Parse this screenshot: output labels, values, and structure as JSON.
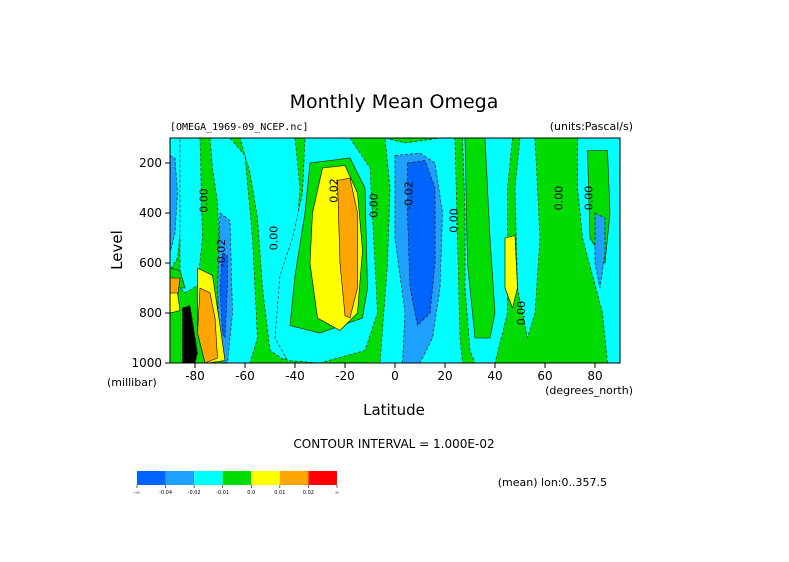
{
  "chart_data": {
    "type": "heatmap",
    "title": "Monthly Mean Omega",
    "dataset_label": "[OMEGA_1969-09_NCEP.nc]",
    "units_label": "(units:Pascal/s)",
    "xlabel": "Latitude",
    "ylabel": "Level",
    "x_unit_label": "(degrees_north)",
    "y_unit_label": "(millibar)",
    "xlim": [
      -90,
      90
    ],
    "ylim": [
      100,
      1000
    ],
    "y_reversed": true,
    "x_ticks": [
      -80,
      -60,
      -40,
      -20,
      0,
      20,
      40,
      60,
      80
    ],
    "x_tick_labels": [
      "-80",
      "-60",
      "-40",
      "-20",
      "0",
      "20",
      "40",
      "60",
      "80"
    ],
    "y_ticks": [
      200,
      400,
      600,
      800,
      1000
    ],
    "y_tick_labels": [
      "200",
      "400",
      "600",
      "800",
      "1000"
    ],
    "contour_interval_label": "CONTOUR INTERVAL = 1.000E-02",
    "mean_label": "(mean) lon:0..357.5",
    "colorbar": {
      "colors": [
        "#0064ff",
        "#1ea0ff",
        "#00ffff",
        "#00dc00",
        "#ffff00",
        "#ffa500",
        "#ff0000"
      ],
      "labels": [
        "-∞",
        "-0.04",
        "-0.02",
        "-0.01",
        "0.0",
        "0.01",
        "0.02",
        "∞"
      ]
    },
    "contour_labels": [
      {
        "text": "0.00",
        "lat": -75,
        "lev": 350
      },
      {
        "text": "-0.02",
        "lat": -68,
        "lev": 560
      },
      {
        "text": "0.00",
        "lat": -47,
        "lev": 500
      },
      {
        "text": "0.02",
        "lat": -23,
        "lev": 310
      },
      {
        "text": "0.00",
        "lat": -7,
        "lev": 370
      },
      {
        "text": "-0.02",
        "lat": 7,
        "lev": 330
      },
      {
        "text": "0.00",
        "lat": 25,
        "lev": 430
      },
      {
        "text": "0.00",
        "lat": 52,
        "lev": 800
      },
      {
        "text": "0.00",
        "lat": 67,
        "lev": 340
      },
      {
        "text": "0.00",
        "lat": 79,
        "lev": 340
      }
    ],
    "regions": [
      {
        "value_class": 4,
        "polygon": [
          [
            -90,
            100
          ],
          [
            90,
            100
          ],
          [
            90,
            1000
          ],
          [
            -90,
            1000
          ]
        ]
      },
      {
        "value_class": 3,
        "polygon": [
          [
            -90,
            100
          ],
          [
            -86,
            100
          ],
          [
            -85,
            400
          ],
          [
            -87,
            580
          ],
          [
            -90,
            630
          ]
        ]
      },
      {
        "value_class": 2,
        "polygon": [
          [
            -90,
            170
          ],
          [
            -88,
            180
          ],
          [
            -87,
            320
          ],
          [
            -88,
            480
          ],
          [
            -90,
            560
          ]
        ]
      },
      {
        "value_class": 3,
        "polygon": [
          [
            -86,
            100
          ],
          [
            -78,
            100
          ],
          [
            -77,
            500
          ],
          [
            -79,
            690
          ],
          [
            -84,
            720
          ],
          [
            -86,
            700
          ]
        ]
      },
      {
        "value_class": 3,
        "polygon": [
          [
            -74,
            100
          ],
          [
            -66,
            100
          ],
          [
            -60,
            170
          ],
          [
            -57,
            500
          ],
          [
            -55,
            900
          ],
          [
            -58,
            1000
          ],
          [
            -68,
            1000
          ],
          [
            -71,
            800
          ],
          [
            -70,
            600
          ],
          [
            -71,
            360
          ],
          [
            -73,
            220
          ]
        ]
      },
      {
        "value_class": 2,
        "polygon": [
          [
            -70,
            400
          ],
          [
            -66,
            430
          ],
          [
            -65,
            800
          ],
          [
            -67,
            1000
          ],
          [
            -70,
            990
          ],
          [
            -71,
            700
          ]
        ]
      },
      {
        "value_class": 1,
        "polygon": [
          [
            -69,
            560
          ],
          [
            -67,
            570
          ],
          [
            -67,
            680
          ],
          [
            -68,
            900
          ],
          [
            -69,
            880
          ],
          [
            -70,
            700
          ]
        ]
      },
      {
        "value_class": 5,
        "polygon": [
          [
            -79,
            620
          ],
          [
            -73,
            650
          ],
          [
            -70,
            850
          ],
          [
            -68,
            990
          ],
          [
            -75,
            1000
          ],
          [
            -79,
            850
          ]
        ]
      },
      {
        "value_class": 6,
        "polygon": [
          [
            -78,
            700
          ],
          [
            -74,
            720
          ],
          [
            -72,
            820
          ],
          [
            -71,
            980
          ],
          [
            -76,
            1000
          ],
          [
            -79,
            880
          ]
        ]
      },
      {
        "value_class": 4,
        "polygon": [
          [
            -90,
            620
          ],
          [
            -86,
            630
          ],
          [
            -84,
            700
          ],
          [
            -90,
            700
          ]
        ]
      },
      {
        "value_class": 6,
        "polygon": [
          [
            -90,
            660
          ],
          [
            -86,
            660
          ],
          [
            -87,
            740
          ],
          [
            -90,
            740
          ]
        ]
      },
      {
        "value_class": 5,
        "polygon": [
          [
            -90,
            720
          ],
          [
            -87,
            720
          ],
          [
            -86,
            790
          ],
          [
            -90,
            800
          ]
        ]
      },
      {
        "value_class": 0,
        "polygon": [
          [
            -85,
            780
          ],
          [
            -82,
            770
          ],
          [
            -79,
            960
          ],
          [
            -80,
            1000
          ],
          [
            -85,
            1000
          ]
        ]
      },
      {
        "value_class": 3,
        "polygon": [
          [
            -62,
            100
          ],
          [
            -40,
            100
          ],
          [
            -38,
            300
          ],
          [
            -41,
            700
          ],
          [
            -44,
            990
          ],
          [
            -50,
            950
          ],
          [
            -53,
            700
          ],
          [
            -55,
            420
          ],
          [
            -58,
            240
          ]
        ]
      },
      {
        "value_class": 3,
        "polygon": [
          [
            -36,
            100
          ],
          [
            -18,
            100
          ],
          [
            -10,
            220
          ],
          [
            -8,
            600
          ],
          [
            -7,
            800
          ],
          [
            -12,
            950
          ],
          [
            -30,
            1000
          ],
          [
            -43,
            990
          ],
          [
            -48,
            900
          ],
          [
            -46,
            650
          ],
          [
            -41,
            500
          ],
          [
            -37,
            320
          ]
        ]
      },
      {
        "value_class": 4,
        "polygon": [
          [
            -34,
            200
          ],
          [
            -18,
            180
          ],
          [
            -12,
            300
          ],
          [
            -11,
            700
          ],
          [
            -13,
            820
          ],
          [
            -30,
            880
          ],
          [
            -42,
            850
          ],
          [
            -40,
            650
          ],
          [
            -36,
            400
          ]
        ]
      },
      {
        "value_class": 5,
        "polygon": [
          [
            -29,
            220
          ],
          [
            -20,
            210
          ],
          [
            -15,
            320
          ],
          [
            -13,
            550
          ],
          [
            -15,
            800
          ],
          [
            -22,
            870
          ],
          [
            -31,
            820
          ],
          [
            -34,
            600
          ],
          [
            -33,
            400
          ]
        ]
      },
      {
        "value_class": 6,
        "polygon": [
          [
            -23,
            270
          ],
          [
            -18,
            260
          ],
          [
            -15,
            400
          ],
          [
            -15,
            700
          ],
          [
            -18,
            820
          ],
          [
            -20,
            810
          ],
          [
            -22,
            600
          ]
        ]
      },
      {
        "value_class": 3,
        "polygon": [
          [
            -4,
            100
          ],
          [
            4,
            120
          ],
          [
            18,
            100
          ],
          [
            24,
            100
          ],
          [
            25,
            500
          ],
          [
            26,
            900
          ],
          [
            27,
            1000
          ],
          [
            -6,
            1000
          ],
          [
            -3,
            600
          ],
          [
            -2,
            300
          ]
        ]
      },
      {
        "value_class": 2,
        "polygon": [
          [
            0,
            170
          ],
          [
            10,
            160
          ],
          [
            16,
            200
          ],
          [
            19,
            400
          ],
          [
            18,
            700
          ],
          [
            15,
            900
          ],
          [
            10,
            1000
          ],
          [
            3,
            1000
          ],
          [
            4,
            800
          ],
          [
            0,
            500
          ]
        ]
      },
      {
        "value_class": 1,
        "polygon": [
          [
            5,
            200
          ],
          [
            12,
            190
          ],
          [
            16,
            300
          ],
          [
            16,
            600
          ],
          [
            14,
            800
          ],
          [
            9,
            850
          ],
          [
            6,
            700
          ],
          [
            5,
            400
          ]
        ]
      },
      {
        "value_class": 3,
        "polygon": [
          [
            27,
            100
          ],
          [
            28,
            400
          ],
          [
            28,
            700
          ],
          [
            30,
            950
          ],
          [
            32,
            1000
          ],
          [
            40,
            1000
          ],
          [
            45,
            800
          ],
          [
            45,
            300
          ],
          [
            47,
            100
          ]
        ]
      },
      {
        "value_class": 4,
        "polygon": [
          [
            28,
            100
          ],
          [
            36,
            100
          ],
          [
            38,
            500
          ],
          [
            40,
            800
          ],
          [
            38,
            900
          ],
          [
            32,
            900
          ],
          [
            29,
            600
          ]
        ]
      },
      {
        "value_class": 3,
        "polygon": [
          [
            50,
            100
          ],
          [
            56,
            100
          ],
          [
            58,
            500
          ],
          [
            56,
            800
          ],
          [
            53,
            900
          ],
          [
            49,
            700
          ],
          [
            48,
            300
          ]
        ]
      },
      {
        "value_class": 5,
        "polygon": [
          [
            44,
            500
          ],
          [
            48,
            490
          ],
          [
            49,
            700
          ],
          [
            47,
            780
          ],
          [
            44,
            700
          ]
        ]
      },
      {
        "value_class": 3,
        "polygon": [
          [
            73,
            100
          ],
          [
            90,
            100
          ],
          [
            90,
            1000
          ],
          [
            85,
            1000
          ],
          [
            83,
            800
          ],
          [
            75,
            500
          ],
          [
            73,
            300
          ]
        ]
      },
      {
        "value_class": 4,
        "polygon": [
          [
            77,
            150
          ],
          [
            85,
            150
          ],
          [
            86,
            400
          ],
          [
            84,
            600
          ],
          [
            78,
            500
          ]
        ]
      },
      {
        "value_class": 2,
        "polygon": [
          [
            80,
            400
          ],
          [
            84,
            420
          ],
          [
            84,
            560
          ],
          [
            82,
            700
          ],
          [
            80,
            600
          ]
        ]
      }
    ]
  }
}
